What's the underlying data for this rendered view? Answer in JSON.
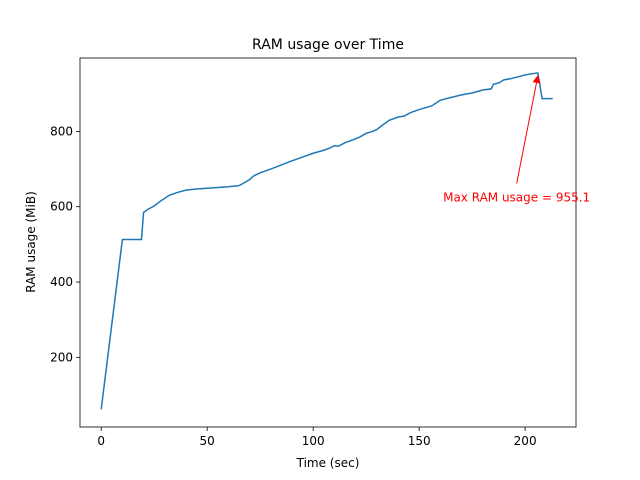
{
  "chart_data": {
    "type": "line",
    "title": "RAM usage over Time",
    "xlabel": "Time (sec)",
    "ylabel": "RAM usage (MiB)",
    "xlim": [
      -10,
      224
    ],
    "ylim": [
      15,
      995
    ],
    "xticks": [
      0,
      50,
      100,
      150,
      200
    ],
    "yticks": [
      200,
      400,
      600,
      800
    ],
    "grid": false,
    "line_color": "#1f77b4",
    "series": [
      {
        "x": [
          0,
          10,
          19,
          20,
          22,
          25,
          28,
          32,
          36,
          40,
          45,
          50,
          55,
          60,
          65,
          67,
          70,
          72,
          75,
          80,
          85,
          90,
          95,
          100,
          105,
          108,
          110,
          112,
          115,
          118,
          122,
          125,
          128,
          130,
          133,
          136,
          140,
          143,
          146,
          150,
          153,
          156,
          160,
          165,
          170,
          175,
          180,
          184,
          185,
          188,
          190,
          193,
          196,
          200,
          203,
          206,
          208,
          213
        ],
        "y": [
          62,
          513,
          513,
          585,
          593,
          602,
          615,
          630,
          638,
          644,
          647,
          649,
          651,
          653,
          656,
          662,
          672,
          682,
          690,
          700,
          711,
          722,
          732,
          742,
          750,
          756,
          762,
          761,
          770,
          776,
          785,
          795,
          800,
          805,
          818,
          830,
          838,
          841,
          850,
          858,
          863,
          868,
          883,
          890,
          897,
          902,
          910,
          913,
          925,
          930,
          937,
          940,
          944,
          950,
          953,
          955.1,
          887,
          887
        ]
      }
    ],
    "annotation": {
      "text": "Max RAM usage = 955.1",
      "color": "#ff0000",
      "point": [
        206,
        955.1
      ],
      "text_pos": [
        196,
        667
      ]
    }
  }
}
